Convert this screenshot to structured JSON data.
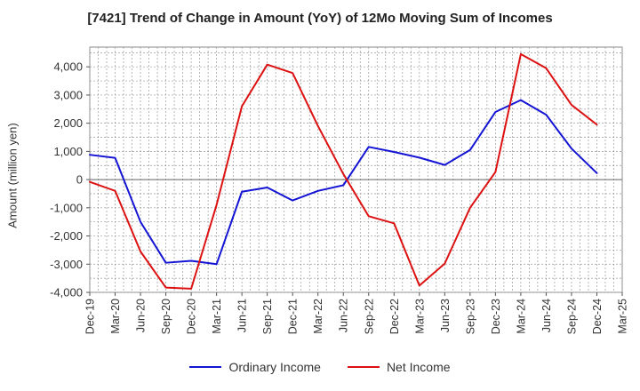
{
  "chart_data": {
    "type": "line",
    "title": "[7421]  Trend of Change in Amount (YoY) of 12Mo Moving Sum of Incomes",
    "xlabel": "",
    "ylabel": "Amount (million yen)",
    "ylim": [
      -4000,
      4700
    ],
    "yticks": [
      "4,000",
      "3,000",
      "2,000",
      "1,000",
      "0",
      "-1,000",
      "-2,000",
      "-3,000",
      "-4,000"
    ],
    "ytick_values": [
      4000,
      3000,
      2000,
      1000,
      0,
      -1000,
      -2000,
      -3000,
      -4000
    ],
    "categories": [
      "Dec-19",
      "Mar-20",
      "Jun-20",
      "Sep-20",
      "Dec-20",
      "Mar-21",
      "Jun-21",
      "Sep-21",
      "Dec-21",
      "Mar-22",
      "Jun-22",
      "Sep-22",
      "Dec-22",
      "Mar-23",
      "Jun-23",
      "Sep-23",
      "Dec-23",
      "Mar-24",
      "Jun-24",
      "Sep-24",
      "Dec-24",
      "Mar-25"
    ],
    "grid": true,
    "legend_position": "bottom",
    "series": [
      {
        "name": "Ordinary Income",
        "color": "#1414d4",
        "values": [
          880,
          770,
          -1500,
          -2950,
          -2880,
          -3000,
          -430,
          -280,
          -740,
          -400,
          -200,
          1160,
          980,
          780,
          520,
          1050,
          2400,
          2820,
          2300,
          1100,
          230,
          null
        ]
      },
      {
        "name": "Net Income",
        "color": "#dd1111",
        "values": [
          -80,
          -400,
          -2550,
          -3830,
          -3870,
          -900,
          2600,
          4080,
          3780,
          1900,
          200,
          -1300,
          -1550,
          -3760,
          -2980,
          -1000,
          270,
          4450,
          3950,
          2650,
          1950,
          null
        ]
      }
    ]
  }
}
